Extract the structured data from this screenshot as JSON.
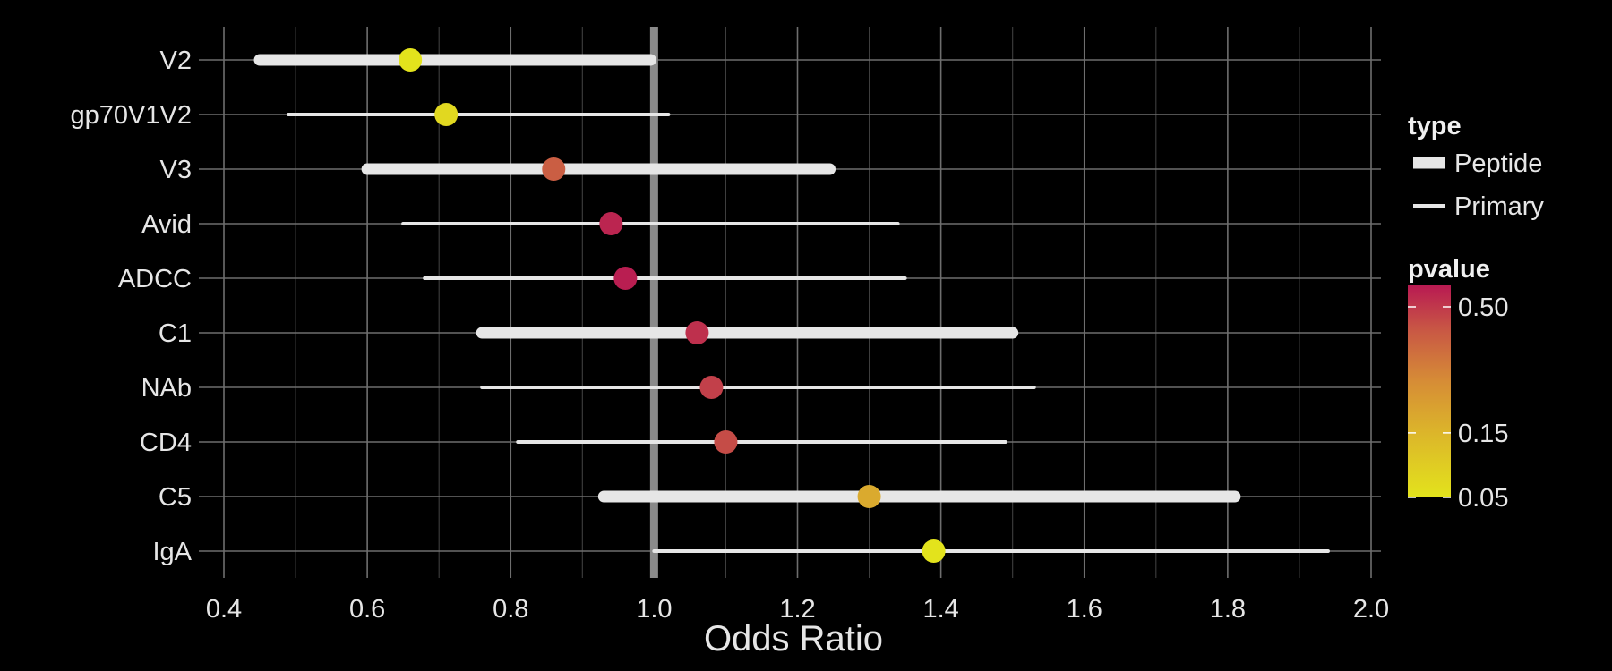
{
  "chart_data": {
    "type": "forest",
    "xlabel": "Odds Ratio",
    "xlim": [
      0.4,
      2.0
    ],
    "xticks": [
      0.4,
      0.6,
      0.8,
      1.0,
      1.2,
      1.4,
      1.6,
      1.8,
      2.0
    ],
    "xtick_labels": [
      "0.4",
      "0.6",
      "0.8",
      "1.0",
      "1.2",
      "1.4",
      "1.6",
      "1.8",
      "2.0"
    ],
    "reference_line": 1.0,
    "rows": [
      {
        "label": "V2",
        "or": 0.66,
        "lower": 0.45,
        "upper": 0.995,
        "type": "Peptide",
        "pvalue": 0.05
      },
      {
        "label": "gp70V1V2",
        "or": 0.71,
        "lower": 0.49,
        "upper": 1.02,
        "type": "Primary",
        "pvalue": 0.07
      },
      {
        "label": "V3",
        "or": 0.86,
        "lower": 0.6,
        "upper": 1.245,
        "type": "Peptide",
        "pvalue": 0.4
      },
      {
        "label": "Avid",
        "or": 0.94,
        "lower": 0.65,
        "upper": 1.34,
        "type": "Primary",
        "pvalue": 0.55
      },
      {
        "label": "ADCC",
        "or": 0.96,
        "lower": 0.68,
        "upper": 1.35,
        "type": "Primary",
        "pvalue": 0.57
      },
      {
        "label": "C1",
        "or": 1.06,
        "lower": 0.76,
        "upper": 1.5,
        "type": "Peptide",
        "pvalue": 0.52
      },
      {
        "label": "NAb",
        "or": 1.08,
        "lower": 0.76,
        "upper": 1.53,
        "type": "Primary",
        "pvalue": 0.48
      },
      {
        "label": "CD4",
        "or": 1.1,
        "lower": 0.81,
        "upper": 1.49,
        "type": "Primary",
        "pvalue": 0.45
      },
      {
        "label": "C5",
        "or": 1.3,
        "lower": 0.93,
        "upper": 1.81,
        "type": "Peptide",
        "pvalue": 0.18
      },
      {
        "label": "IgA",
        "or": 1.39,
        "lower": 1.0,
        "upper": 1.94,
        "type": "Primary",
        "pvalue": 0.05
      }
    ],
    "legend": {
      "placement": "right",
      "type_title": "type",
      "type_items": [
        {
          "label": "Peptide",
          "style": "thick"
        },
        {
          "label": "Primary",
          "style": "thin"
        }
      ],
      "pvalue_title": "pvalue",
      "pvalue_ticks": [
        {
          "label": "0.50",
          "value": 0.5
        },
        {
          "label": "0.15",
          "value": 0.15
        },
        {
          "label": "0.05",
          "value": 0.05
        }
      ],
      "pvalue_range": [
        0.05,
        0.58
      ],
      "colors": {
        "low": "#e3e31c",
        "mid": "#d88c31",
        "high": "#b81a52"
      }
    },
    "grid": true,
    "colors": {
      "background": "#000000",
      "interval": "#e6e6e6",
      "reference": "#8a8a8a"
    }
  }
}
